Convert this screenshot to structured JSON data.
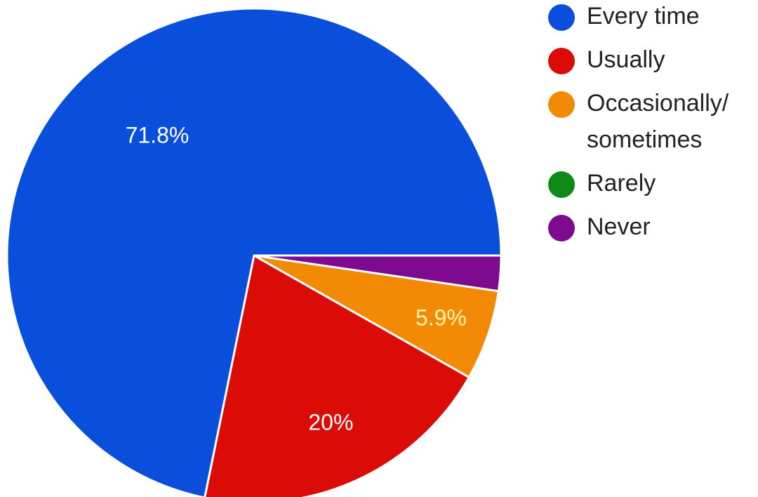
{
  "chart_data": {
    "type": "pie",
    "legend_position": "right",
    "slices": [
      {
        "label": "Every time",
        "value": 71.8,
        "data_label": "71.8%",
        "color": "#0a4fdc",
        "label_color": "#ffffff"
      },
      {
        "label": "Usually",
        "value": 20.0,
        "data_label": "20%",
        "color": "#db0c08",
        "label_color": "#ffffff"
      },
      {
        "label": "Occasionally/ sometimes",
        "legend_lines": [
          "Occasionally/",
          "sometimes"
        ],
        "value": 5.9,
        "data_label": "5.9%",
        "color": "#f38a06",
        "label_color": "#fff4b0"
      },
      {
        "label": "Rarely",
        "value": 0,
        "data_label": "",
        "color": "#0f8a16",
        "label_color": "#ffffff"
      },
      {
        "label": "Never",
        "value": 2.3,
        "data_label": "",
        "color": "#7d0a8f",
        "label_color": "#ffffff"
      }
    ]
  }
}
